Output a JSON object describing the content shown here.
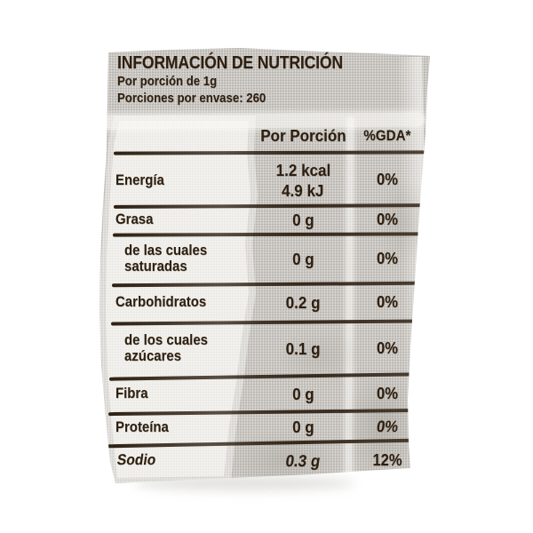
{
  "label": {
    "title": "INFORMACIÓN DE NUTRICIÓN",
    "serving_line": "Por porción de 1g",
    "servings_line": "Porciones por envase: 260",
    "columns": {
      "portion": "Por Porción",
      "gda": "%GDA*"
    },
    "rows": [
      {
        "name": "Energía",
        "value": "1.2 kcal",
        "value2": "4.9 kJ",
        "gda": "0%"
      },
      {
        "name": "Grasa",
        "value": "0 g",
        "gda": "0%"
      },
      {
        "name": "de las cuales",
        "name2": "saturadas",
        "value": "0 g",
        "gda": "0%"
      },
      {
        "name": "Carbohidratos",
        "value": "0.2 g",
        "gda": "0%"
      },
      {
        "name": "de los cuales",
        "name2": "azúcares",
        "value": "0.1 g",
        "gda": "0%"
      },
      {
        "name": "Fibra",
        "value": "0 g",
        "gda": "0%"
      },
      {
        "name": "Proteína",
        "value": "0 g",
        "gda": "0%"
      },
      {
        "name": "Sodio",
        "value": "0.3 g",
        "gda": "12%"
      }
    ],
    "colors": {
      "package_gray": "#c9c6c1",
      "glare_white": "#faf9f6",
      "ink": "#2e1f10",
      "page_background": "#ffffff"
    }
  }
}
